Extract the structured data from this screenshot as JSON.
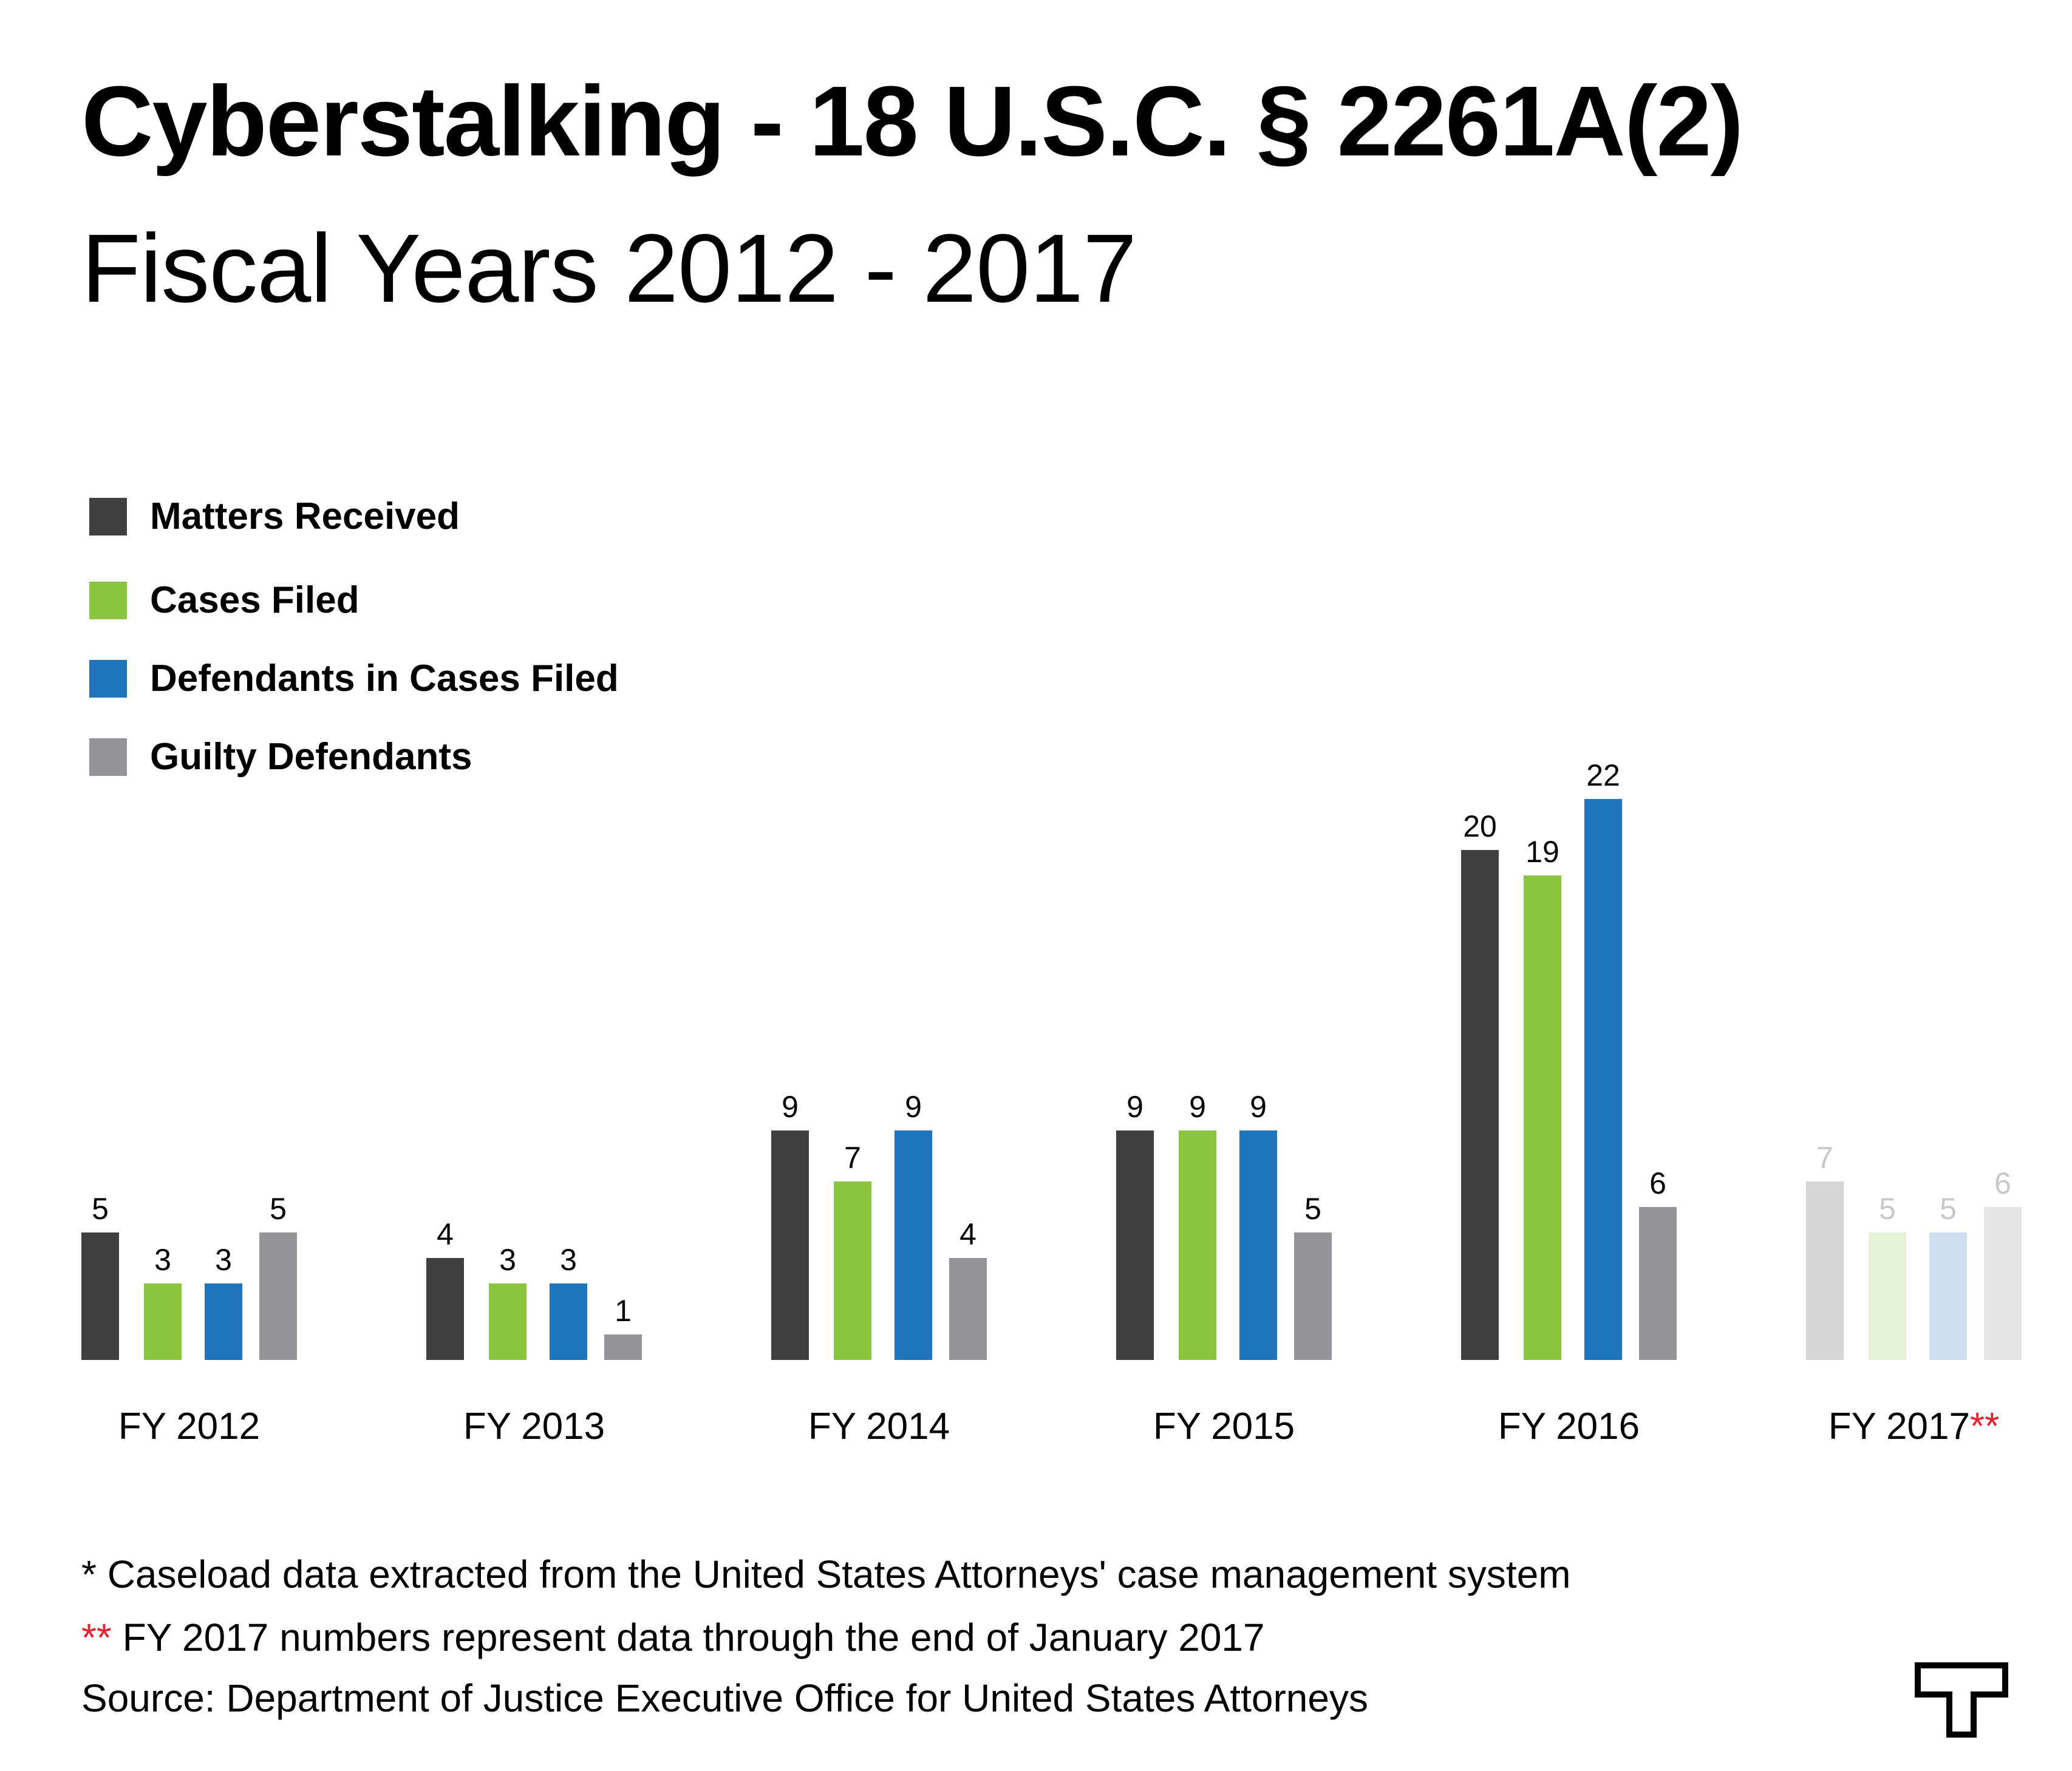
{
  "title": "Cyberstalking - 18 U.S.C. § 2261A(2)",
  "subtitle": "Fiscal Years 2012 - 2017",
  "colors": {
    "matters": "#404041",
    "cases": "#8cc63e",
    "defendants": "#1f75bc",
    "guilty": "#939598",
    "asterisk_red": "#e4222e"
  },
  "chart_data": {
    "type": "bar",
    "categories": [
      "FY 2012",
      "FY 2013",
      "FY 2014",
      "FY 2015",
      "FY 2016",
      "FY 2017"
    ],
    "category_marks": [
      "",
      "",
      "",
      "",
      "",
      "**"
    ],
    "series": [
      {
        "name": "Matters Received",
        "color": "#404041",
        "faded_color": "#d6d6d6",
        "values": [
          5,
          4,
          9,
          9,
          20,
          7
        ]
      },
      {
        "name": "Cases Filed",
        "color": "#8cc63e",
        "faded_color": "#e6f2d6",
        "values": [
          3,
          3,
          7,
          9,
          19,
          5
        ]
      },
      {
        "name": "Defendants in Cases Filed",
        "color": "#1f75bc",
        "faded_color": "#cfe1f0",
        "values": [
          3,
          3,
          9,
          9,
          22,
          5
        ]
      },
      {
        "name": "Guilty Defendants",
        "color": "#939598",
        "faded_color": "#e6e6e6",
        "values": [
          5,
          1,
          4,
          5,
          6,
          6
        ]
      }
    ],
    "faded_categories": [
      "FY 2017"
    ],
    "faded_label_color": "#c8c8c8",
    "ylim": [
      0,
      22
    ],
    "grid": false,
    "legend": "top-left",
    "xlabel": "",
    "ylabel": ""
  },
  "footnotes": {
    "note1": "* Caseload data extracted from the United States Attorneys' case management system",
    "note2_mark": "**",
    "note2_text": " FY 2017 numbers represent data through the end of January 2017",
    "source": "Source: Department of Justice Executive Office for United States Attorneys"
  },
  "logo_icon": "t-logo-icon"
}
